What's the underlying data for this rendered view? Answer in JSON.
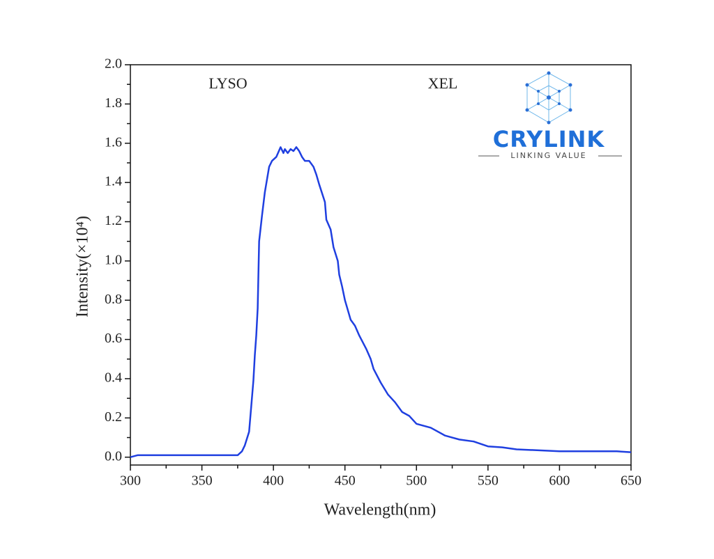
{
  "chart_data": {
    "type": "line",
    "xlabel": "Wavelength(nm)",
    "ylabel": "Intensity(×10⁴)",
    "annotations": [
      "LYSO",
      "XEL"
    ],
    "color": "#1f3fe0",
    "x": [
      300,
      305,
      375,
      378,
      380,
      383,
      386,
      387,
      388,
      389,
      390,
      392,
      394,
      397,
      399,
      402,
      405,
      407,
      408,
      410,
      412,
      414,
      416,
      418,
      420,
      422,
      425,
      428,
      430,
      432,
      436,
      437,
      440,
      442,
      445,
      446,
      448,
      450,
      452,
      454,
      457,
      460,
      465,
      468,
      470,
      475,
      480,
      485,
      490,
      495,
      500,
      510,
      520,
      525,
      530,
      540,
      550,
      560,
      570,
      600,
      640,
      650
    ],
    "values": [
      0.0,
      0.01,
      0.01,
      0.03,
      0.06,
      0.13,
      0.39,
      0.52,
      0.62,
      0.76,
      1.1,
      1.23,
      1.35,
      1.48,
      1.51,
      1.53,
      1.58,
      1.55,
      1.57,
      1.55,
      1.57,
      1.56,
      1.58,
      1.56,
      1.53,
      1.51,
      1.51,
      1.48,
      1.44,
      1.39,
      1.3,
      1.21,
      1.16,
      1.07,
      1.0,
      0.93,
      0.87,
      0.8,
      0.75,
      0.7,
      0.67,
      0.62,
      0.55,
      0.5,
      0.45,
      0.38,
      0.32,
      0.28,
      0.23,
      0.21,
      0.17,
      0.15,
      0.11,
      0.1,
      0.09,
      0.08,
      0.055,
      0.05,
      0.04,
      0.03,
      0.03,
      0.025
    ],
    "xlim": [
      300,
      650
    ],
    "xticks": [
      300,
      350,
      400,
      450,
      500,
      550,
      600,
      650
    ],
    "ylim": [
      -0.04,
      2.0
    ],
    "yticks": [
      {
        "value": 0,
        "label": "0.0"
      },
      0.2,
      0.4,
      0.6,
      0.8,
      {
        "value": 1,
        "label": "1.0"
      },
      1.2,
      1.4,
      1.6,
      1.8,
      {
        "value": 2,
        "label": "2.0"
      }
    ]
  },
  "logo": {
    "name": "CRYLINK",
    "tagline": "LINKING VALUE"
  }
}
